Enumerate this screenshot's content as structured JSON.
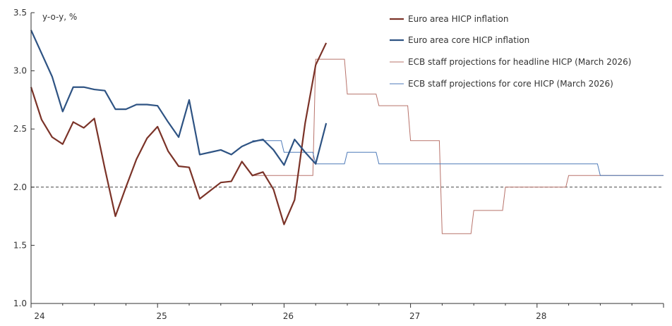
{
  "chart_data": {
    "type": "line",
    "ylabel": "y-o-y, %",
    "ylim": [
      1.0,
      3.5
    ],
    "yticks": [
      "1.0",
      "1.5",
      "2.0",
      "2.5",
      "3.0",
      "3.5"
    ],
    "xlim": [
      2024.0,
      2029.0
    ],
    "xticks": [
      {
        "label": "24",
        "x": 2024.0
      },
      {
        "label": "25",
        "x": 2025.0
      },
      {
        "label": "26",
        "x": 2026.0
      },
      {
        "label": "27",
        "x": 2027.0
      },
      {
        "label": "28",
        "x": 2028.0
      }
    ],
    "reference_line": {
      "y": 2.0,
      "style": "dashed"
    },
    "grid": false,
    "legend_position": "top-right",
    "colors": {
      "headline": "#7b3328",
      "core": "#2e5383",
      "proj_headline": "#b8736b",
      "proj_core": "#4e7ab8",
      "axis": "#333333"
    },
    "series": [
      {
        "name": "Euro area HICP inflation",
        "color_key": "headline",
        "style": "thick",
        "x": [
          2024.0,
          2024.0833,
          2024.1667,
          2024.25,
          2024.3333,
          2024.4167,
          2024.5,
          2024.5833,
          2024.6667,
          2024.75,
          2024.8333,
          2024.9167,
          2025.0,
          2025.0833,
          2025.1667,
          2025.25,
          2025.3333,
          2025.4167,
          2025.5,
          2025.5833,
          2025.6667,
          2025.75,
          2025.8333,
          2025.9167,
          2026.0,
          2026.0833,
          2026.1667,
          2026.25,
          2026.3333
        ],
        "values": [
          2.86,
          2.58,
          2.43,
          2.37,
          2.56,
          2.51,
          2.59,
          2.16,
          1.75,
          2.0,
          2.24,
          2.42,
          2.52,
          2.31,
          2.18,
          2.17,
          1.9,
          1.97,
          2.04,
          2.05,
          2.22,
          2.1,
          2.13,
          1.98,
          1.68,
          1.89,
          2.55,
          3.05,
          3.24
        ]
      },
      {
        "name": "Euro area core HICP inflation",
        "color_key": "core",
        "style": "thick",
        "x": [
          2024.0,
          2024.0833,
          2024.1667,
          2024.25,
          2024.3333,
          2024.4167,
          2024.5,
          2024.5833,
          2024.6667,
          2024.75,
          2024.8333,
          2024.9167,
          2025.0,
          2025.0833,
          2025.1667,
          2025.25,
          2025.3333,
          2025.4167,
          2025.5,
          2025.5833,
          2025.6667,
          2025.75,
          2025.8333,
          2025.9167,
          2026.0,
          2026.0833,
          2026.1667,
          2026.25,
          2026.3333
        ],
        "values": [
          3.35,
          3.15,
          2.95,
          2.65,
          2.86,
          2.86,
          2.84,
          2.83,
          2.67,
          2.67,
          2.71,
          2.71,
          2.7,
          2.56,
          2.43,
          2.75,
          2.28,
          2.3,
          2.32,
          2.28,
          2.35,
          2.39,
          2.41,
          2.32,
          2.19,
          2.41,
          2.3,
          2.2,
          2.55
        ]
      },
      {
        "name": "ECB staff projections for headline HICP (March 2026)",
        "color_key": "proj_headline",
        "style": "thin-step",
        "x": [
          2025.75,
          2026.25,
          2026.5,
          2026.75,
          2027.0,
          2027.25,
          2027.5,
          2027.75,
          2028.0,
          2028.25,
          2028.5,
          2028.75,
          2029.0
        ],
        "values": [
          2.1,
          3.1,
          2.8,
          2.7,
          2.4,
          1.6,
          1.8,
          2.0,
          2.0,
          2.1,
          2.1,
          2.1,
          2.1
        ]
      },
      {
        "name": "ECB staff projections for core HICP (March 2026)",
        "color_key": "proj_core",
        "style": "thin-step",
        "x": [
          2025.75,
          2026.0,
          2026.25,
          2026.5,
          2026.75,
          2027.0,
          2027.25,
          2027.5,
          2027.75,
          2028.0,
          2028.25,
          2028.5,
          2028.75,
          2029.0
        ],
        "values": [
          2.4,
          2.3,
          2.2,
          2.3,
          2.2,
          2.2,
          2.2,
          2.2,
          2.2,
          2.2,
          2.2,
          2.1,
          2.1,
          2.1
        ]
      }
    ]
  }
}
